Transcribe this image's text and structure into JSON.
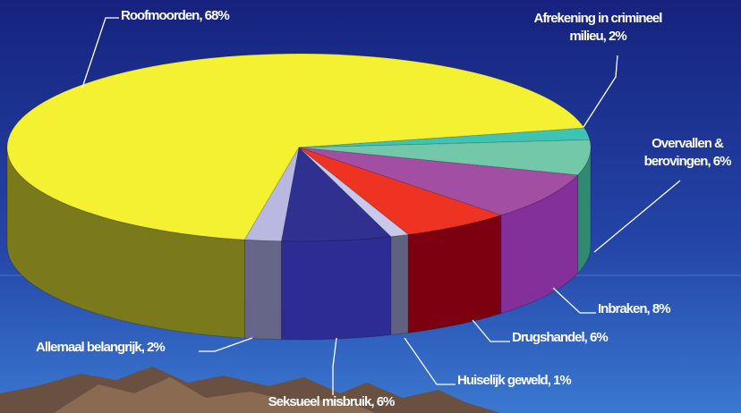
{
  "chart_data": {
    "type": "pie",
    "values": [
      68,
      2,
      6,
      8,
      6,
      1,
      6,
      2
    ],
    "value_labels": [
      "Roofmoorden, 68%",
      "Afrekening in crimineel\nmilieu, 2%",
      "Overvallen &\nberovingen, 6%",
      "Inbraken, 8%",
      "Drugshandel, 6%",
      "Huiselijk geweld, 1%",
      "Seksueel misbruik, 6%",
      "Allemaal belangrijk, 2%"
    ],
    "colors": [
      "#f4f032",
      "#3fc4b4",
      "#72c8a8",
      "#a24ea2",
      "#ee3322",
      "#c8c8e8",
      "#303090",
      "#b8b8e0"
    ],
    "side_colors": [
      "#7a7a1c",
      "#2a8a80",
      "#2f8a70",
      "#83309a",
      "#7c0010",
      "#606080",
      "#2c2c94",
      "#666688"
    ]
  }
}
